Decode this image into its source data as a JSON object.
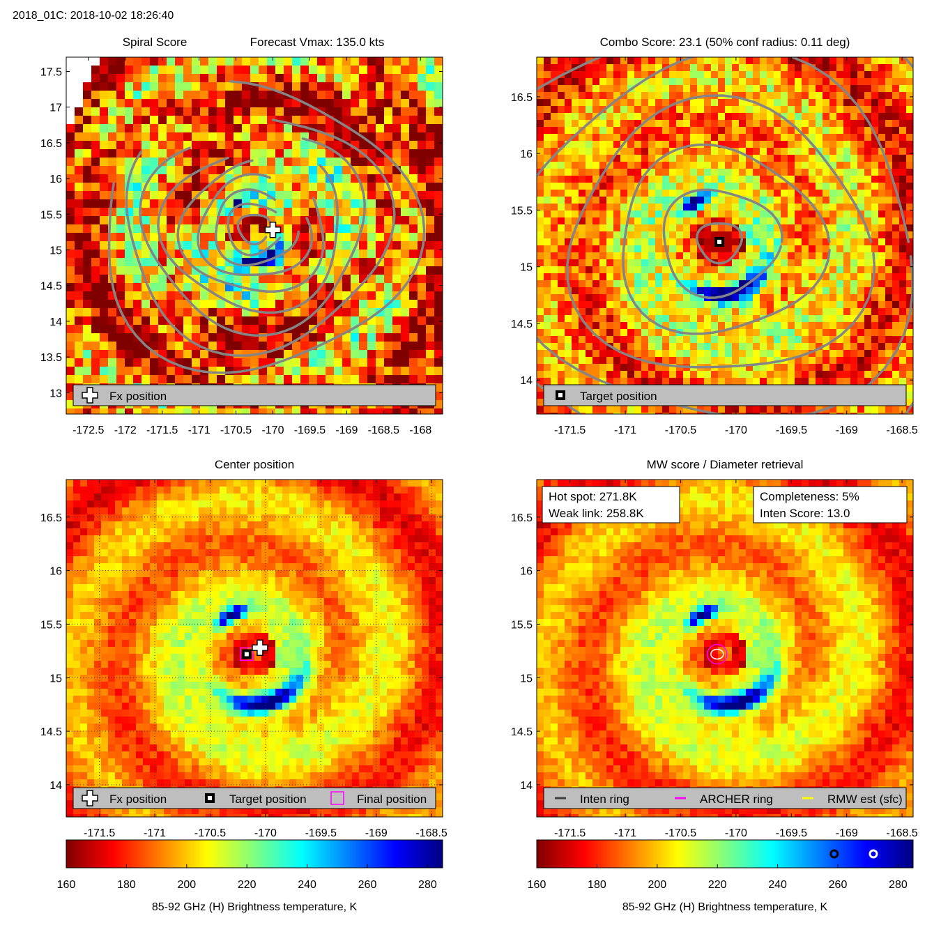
{
  "figure_title": "2018_01C: 2018-10-02 18:26:40",
  "colors": {
    "contour": "#858585",
    "legend_bg": "#bebebe",
    "archer_ring": "#ff00ff",
    "rmw": "#ffff00",
    "inten_ring": "#404040"
  },
  "chart_data": [
    {
      "id": "spiral",
      "type": "heatmap",
      "title": "Spiral Score",
      "subtitle": "Forecast Vmax: 135.0 kts",
      "xlim": [
        -172.8,
        -167.7
      ],
      "ylim": [
        12.7,
        17.7
      ],
      "xticks": [
        -172.5,
        -172,
        -171.5,
        -171,
        -170.5,
        -170,
        -169.5,
        -169,
        -168.5,
        -168
      ],
      "xtick_labels": [
        "-172.5",
        "-172",
        "-171.5",
        "-171",
        "-170.5",
        "-170",
        "-169.5",
        "-169",
        "-168.5",
        "-168"
      ],
      "yticks": [
        13,
        13.5,
        14,
        14.5,
        15,
        15.5,
        16,
        16.5,
        17,
        17.5
      ],
      "ytick_labels": [
        "13",
        "13.5",
        "14",
        "14.5",
        "15",
        "15.5",
        "16",
        "16.5",
        "17",
        "17.5"
      ],
      "center": [
        -170.25,
        15.3
      ],
      "markers": [
        {
          "kind": "fx",
          "lon": -170.0,
          "lat": 15.28
        }
      ],
      "legend": [
        {
          "symbol": "fx",
          "label": "Fx position"
        }
      ]
    },
    {
      "id": "combo",
      "type": "heatmap",
      "title": "Combo Score: 23.1  (50% conf radius: 0.11 deg)",
      "xlim": [
        -171.8,
        -168.4
      ],
      "ylim": [
        13.7,
        16.85
      ],
      "xticks": [
        -171.5,
        -171,
        -170.5,
        -170,
        -169.5,
        -169,
        -168.5
      ],
      "xtick_labels": [
        "-171.5",
        "-171",
        "-170.5",
        "-170",
        "-169.5",
        "-169",
        "-168.5"
      ],
      "yticks": [
        14,
        14.5,
        15,
        15.5,
        16,
        16.5
      ],
      "ytick_labels": [
        "14",
        "14.5",
        "15",
        "15.5",
        "16",
        "16.5"
      ],
      "center": [
        -170.15,
        15.22
      ],
      "markers": [
        {
          "kind": "target",
          "lon": -170.15,
          "lat": 15.22
        }
      ],
      "legend": [
        {
          "symbol": "target",
          "label": "Target position"
        }
      ]
    },
    {
      "id": "center",
      "type": "heatmap",
      "title": "Center position",
      "xlim": [
        -171.8,
        -168.4
      ],
      "ylim": [
        13.7,
        16.85
      ],
      "xticks": [
        -171.5,
        -171,
        -170.5,
        -170,
        -169.5,
        -169,
        -168.5
      ],
      "xtick_labels": [
        "-171.5",
        "-171",
        "-170.5",
        "-170",
        "-169.5",
        "-169",
        "-168.5"
      ],
      "yticks": [
        14,
        14.5,
        15,
        15.5,
        16,
        16.5
      ],
      "ytick_labels": [
        "14",
        "14.5",
        "15",
        "15.5",
        "16",
        "16.5"
      ],
      "grid": true,
      "center": [
        -170.1,
        15.22
      ],
      "markers": [
        {
          "kind": "target",
          "lon": -170.17,
          "lat": 15.22
        },
        {
          "kind": "final",
          "lon": -170.17,
          "lat": 15.22
        },
        {
          "kind": "fx",
          "lon": -170.05,
          "lat": 15.28
        }
      ],
      "legend": [
        {
          "symbol": "fx",
          "label": "Fx position"
        },
        {
          "symbol": "target",
          "label": "Target position"
        },
        {
          "symbol": "final",
          "label": "Final position"
        }
      ],
      "colorbar": {
        "range": [
          160,
          285
        ],
        "ticks": [
          160,
          180,
          200,
          220,
          240,
          260,
          280
        ],
        "tick_labels": [
          "160",
          "180",
          "200",
          "220",
          "240",
          "260",
          "280"
        ],
        "label": "85-92 GHz (H) Brightness temperature, K"
      }
    },
    {
      "id": "mw",
      "type": "heatmap",
      "title": "MW score / Diameter retrieval",
      "xlim": [
        -171.8,
        -168.4
      ],
      "ylim": [
        13.7,
        16.85
      ],
      "xticks": [
        -171.5,
        -171,
        -170.5,
        -170,
        -169.5,
        -169,
        -168.5
      ],
      "xtick_labels": [
        "-171.5",
        "-171",
        "-170.5",
        "-170",
        "-169.5",
        "-169",
        "-168.5"
      ],
      "yticks": [
        14,
        14.5,
        15,
        15.5,
        16,
        16.5
      ],
      "ytick_labels": [
        "14",
        "14.5",
        "15",
        "15.5",
        "16",
        "16.5"
      ],
      "center": [
        -170.1,
        15.22
      ],
      "markers": [
        {
          "kind": "archer",
          "lon": -170.17,
          "lat": 15.22
        },
        {
          "kind": "rmw",
          "lon": -170.17,
          "lat": 15.22
        }
      ],
      "info_boxes": [
        {
          "lines": [
            "Hot spot: 271.8K",
            "Weak link: 258.8K"
          ]
        },
        {
          "lines": [
            "Completeness: 5%",
            "Inten Score: 13.0"
          ]
        }
      ],
      "legend": [
        {
          "symbol": "line-inten",
          "label": "Inten ring"
        },
        {
          "symbol": "line-archer",
          "label": "ARCHER ring"
        },
        {
          "symbol": "line-rmw",
          "label": "RMW est (sfc)"
        }
      ],
      "colorbar": {
        "range": [
          160,
          285
        ],
        "ticks": [
          160,
          180,
          200,
          220,
          240,
          260,
          280
        ],
        "tick_labels": [
          "160",
          "180",
          "200",
          "220",
          "240",
          "260",
          "280"
        ],
        "label": "85-92 GHz (H) Brightness temperature, K",
        "ring_markers": [
          {
            "kind": "inten",
            "value": 258.8
          },
          {
            "kind": "hot",
            "value": 271.8
          }
        ]
      }
    }
  ]
}
